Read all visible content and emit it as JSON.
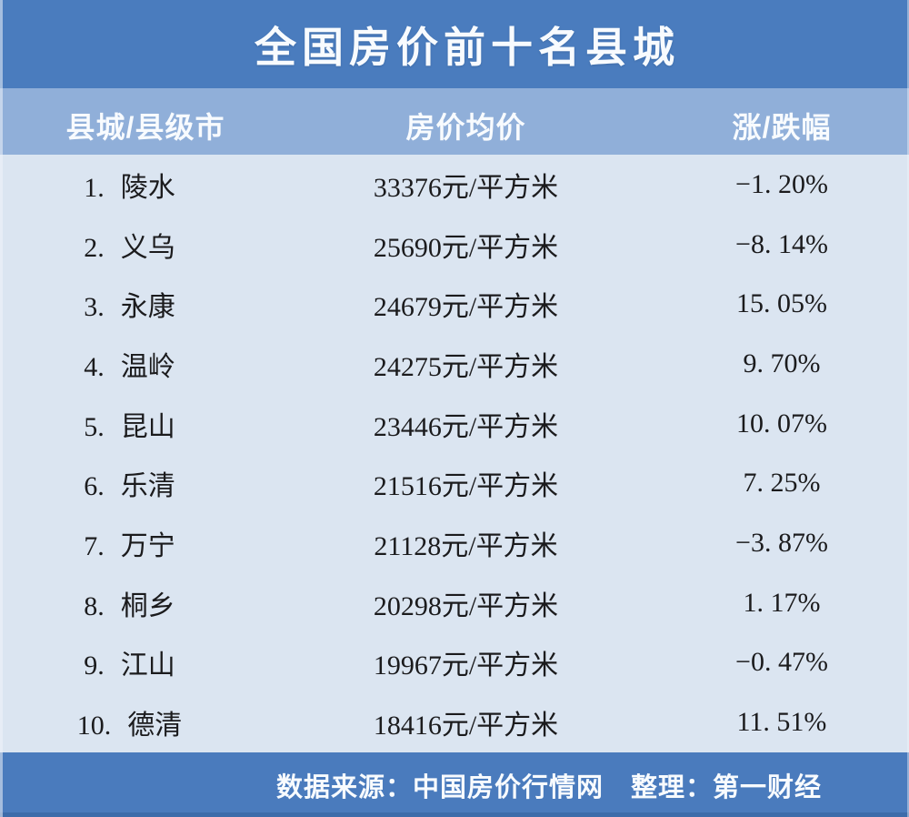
{
  "title": "全国房价前十名县城",
  "columns": [
    "县城/县级市",
    "房价均价",
    "涨/跌幅"
  ],
  "rows": [
    {
      "rank": "1.",
      "name": "陵水",
      "price": "33376元/平方米",
      "change": "−1. 20%"
    },
    {
      "rank": "2.",
      "name": "义乌",
      "price": "25690元/平方米",
      "change": "−8. 14%"
    },
    {
      "rank": "3.",
      "name": "永康",
      "price": "24679元/平方米",
      "change": "15. 05%"
    },
    {
      "rank": "4.",
      "name": "温岭",
      "price": "24275元/平方米",
      "change": "9. 70%"
    },
    {
      "rank": "5.",
      "name": "昆山",
      "price": "23446元/平方米",
      "change": "10. 07%"
    },
    {
      "rank": "6.",
      "name": "乐清",
      "price": "21516元/平方米",
      "change": "7. 25%"
    },
    {
      "rank": "7.",
      "name": "万宁",
      "price": "21128元/平方米",
      "change": "−3. 87%"
    },
    {
      "rank": "8.",
      "name": "桐乡",
      "price": "20298元/平方米",
      "change": "1. 17%"
    },
    {
      "rank": "9.",
      "name": "江山",
      "price": "19967元/平方米",
      "change": "−0. 47%"
    },
    {
      "rank": "10.",
      "name": "德清",
      "price": "18416元/平方米",
      "change": "11. 51%"
    }
  ],
  "footer": {
    "text": "数据来源：中国房价行情网　整理：第一财经"
  },
  "colors": {
    "header_bg": "#4a7cbe",
    "subheader_bg": "#90afd9",
    "body_bg": "#dbe5f1",
    "footer_bg": "#4a7bbd",
    "footer_edge": "#3d6caa",
    "text_dark": "#1b1b1d",
    "text_light": "#f8fbfe"
  },
  "chart_data": {
    "type": "table",
    "title": "全国房价前十名县城",
    "columns": [
      "县城/县级市",
      "房价均价",
      "涨/跌幅"
    ],
    "rows": [
      {
        "rank": 1,
        "county": "陵水",
        "price_yuan_per_sqm": 33376,
        "change_pct": -1.2
      },
      {
        "rank": 2,
        "county": "义乌",
        "price_yuan_per_sqm": 25690,
        "change_pct": -8.14
      },
      {
        "rank": 3,
        "county": "永康",
        "price_yuan_per_sqm": 24679,
        "change_pct": 15.05
      },
      {
        "rank": 4,
        "county": "温岭",
        "price_yuan_per_sqm": 24275,
        "change_pct": 9.7
      },
      {
        "rank": 5,
        "county": "昆山",
        "price_yuan_per_sqm": 23446,
        "change_pct": 10.07
      },
      {
        "rank": 6,
        "county": "乐清",
        "price_yuan_per_sqm": 21516,
        "change_pct": 7.25
      },
      {
        "rank": 7,
        "county": "万宁",
        "price_yuan_per_sqm": 21128,
        "change_pct": -3.87
      },
      {
        "rank": 8,
        "county": "桐乡",
        "price_yuan_per_sqm": 20298,
        "change_pct": 1.17
      },
      {
        "rank": 9,
        "county": "江山",
        "price_yuan_per_sqm": 19967,
        "change_pct": -0.47
      },
      {
        "rank": 10,
        "county": "德清",
        "price_yuan_per_sqm": 18416,
        "change_pct": 11.51
      }
    ],
    "source_note": "数据来源：中国房价行情网 整理：第一财经"
  }
}
